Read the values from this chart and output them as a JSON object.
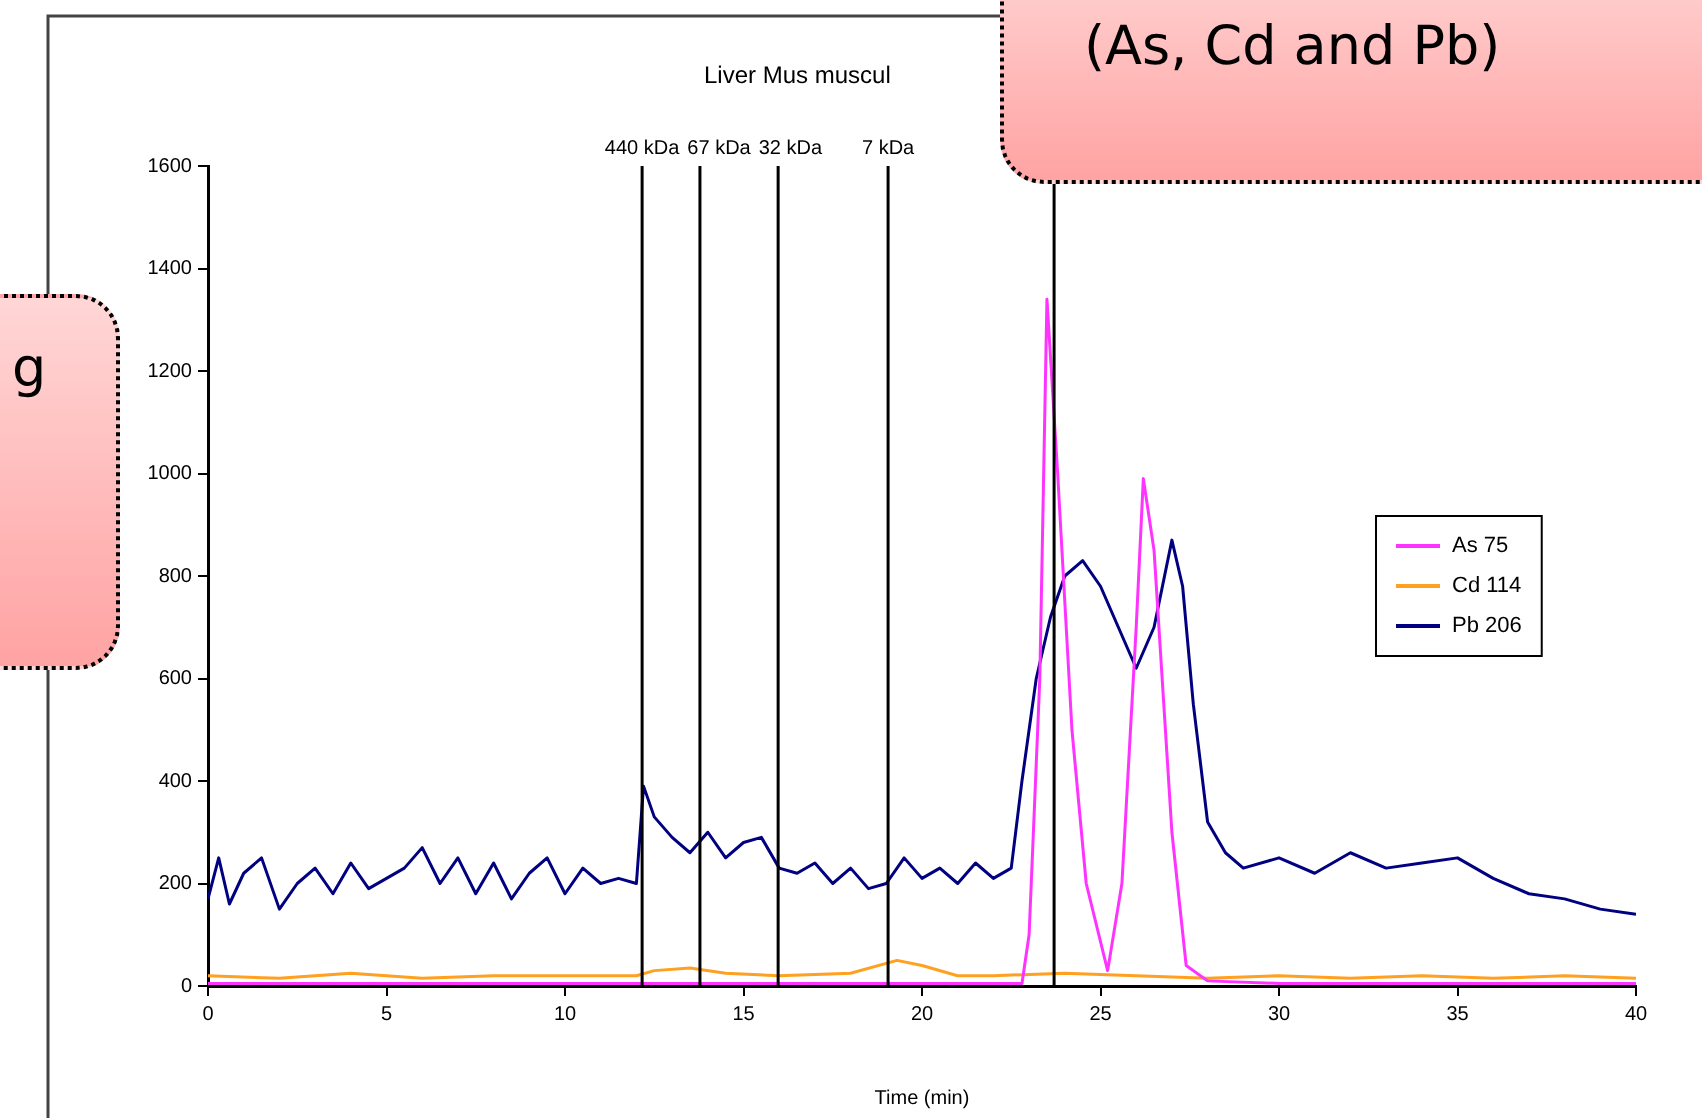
{
  "chart_data": {
    "type": "line",
    "title": "Liver Mus muscul",
    "xlabel": "Time (min)",
    "xlim": [
      0,
      40
    ],
    "xticks": [
      0,
      5,
      10,
      15,
      20,
      25,
      30,
      35,
      40
    ],
    "ylim": [
      0,
      1600
    ],
    "yticks": [
      0,
      200,
      400,
      600,
      800,
      1000,
      1200,
      1400,
      1600
    ],
    "grid": false,
    "legend": "right",
    "marker": "none",
    "line_style": "solid",
    "series": [
      {
        "name": "As 75",
        "color": "#ff33ff",
        "x": [
          0,
          5,
          10,
          15,
          20,
          22.8,
          23.0,
          23.3,
          23.5,
          23.8,
          24.2,
          24.6,
          25.2,
          25.6,
          26.0,
          26.2,
          26.5,
          27.0,
          27.4,
          28,
          30,
          35,
          40
        ],
        "values": [
          5,
          5,
          5,
          5,
          5,
          5,
          100,
          600,
          1340,
          1000,
          500,
          200,
          30,
          200,
          700,
          990,
          850,
          300,
          40,
          10,
          5,
          5,
          5
        ]
      },
      {
        "name": "Cd 114",
        "color": "#ffa020",
        "x": [
          0,
          2,
          4,
          6,
          8,
          10,
          12,
          12.5,
          13.5,
          14.5,
          16,
          18,
          19.3,
          20,
          21,
          22,
          24,
          26,
          28,
          30,
          32,
          34,
          36,
          38,
          40
        ],
        "values": [
          20,
          15,
          25,
          15,
          20,
          20,
          20,
          30,
          35,
          25,
          20,
          25,
          50,
          40,
          20,
          20,
          25,
          20,
          15,
          20,
          15,
          20,
          15,
          20,
          15
        ]
      },
      {
        "name": "Pb 206",
        "color": "#000080",
        "x": [
          0,
          0.3,
          0.6,
          1,
          1.5,
          2,
          2.5,
          3,
          3.5,
          4,
          4.5,
          5,
          5.5,
          6,
          6.5,
          7,
          7.5,
          8,
          8.5,
          9,
          9.5,
          10,
          10.5,
          11,
          11.5,
          12,
          12.2,
          12.5,
          13,
          13.5,
          14,
          14.5,
          15,
          15.5,
          16,
          16.5,
          17,
          17.5,
          18,
          18.5,
          19,
          19.5,
          20,
          20.5,
          21,
          21.5,
          22,
          22.5,
          22.8,
          23.2,
          23.6,
          24,
          24.5,
          25,
          25.5,
          26,
          26.5,
          27,
          27.3,
          27.6,
          28,
          28.5,
          29,
          30,
          31,
          32,
          33,
          34,
          35,
          36,
          37,
          38,
          39,
          40
        ],
        "values": [
          170,
          250,
          160,
          220,
          250,
          150,
          200,
          230,
          180,
          240,
          190,
          210,
          230,
          270,
          200,
          250,
          180,
          240,
          170,
          220,
          250,
          180,
          230,
          200,
          210,
          200,
          390,
          330,
          290,
          260,
          300,
          250,
          280,
          290,
          230,
          220,
          240,
          200,
          230,
          190,
          200,
          250,
          210,
          230,
          200,
          240,
          210,
          230,
          400,
          600,
          720,
          800,
          830,
          780,
          700,
          620,
          700,
          870,
          780,
          550,
          320,
          260,
          230,
          250,
          220,
          260,
          230,
          240,
          250,
          210,
          180,
          170,
          150,
          140
        ]
      }
    ],
    "ref_lines": [
      {
        "axis": "x",
        "value": 12.16,
        "label": "440 kDa"
      },
      {
        "axis": "x",
        "value": 13.78,
        "label": "67 kDa"
      },
      {
        "axis": "x",
        "value": 15.97,
        "label": "32 kDa"
      },
      {
        "axis": "x",
        "value": 19.05,
        "label": "7 kDa"
      },
      {
        "axis": "x",
        "value": 23.7,
        "label": null
      }
    ],
    "annotations": [
      "(As, Cd and Pb)",
      "g"
    ]
  }
}
